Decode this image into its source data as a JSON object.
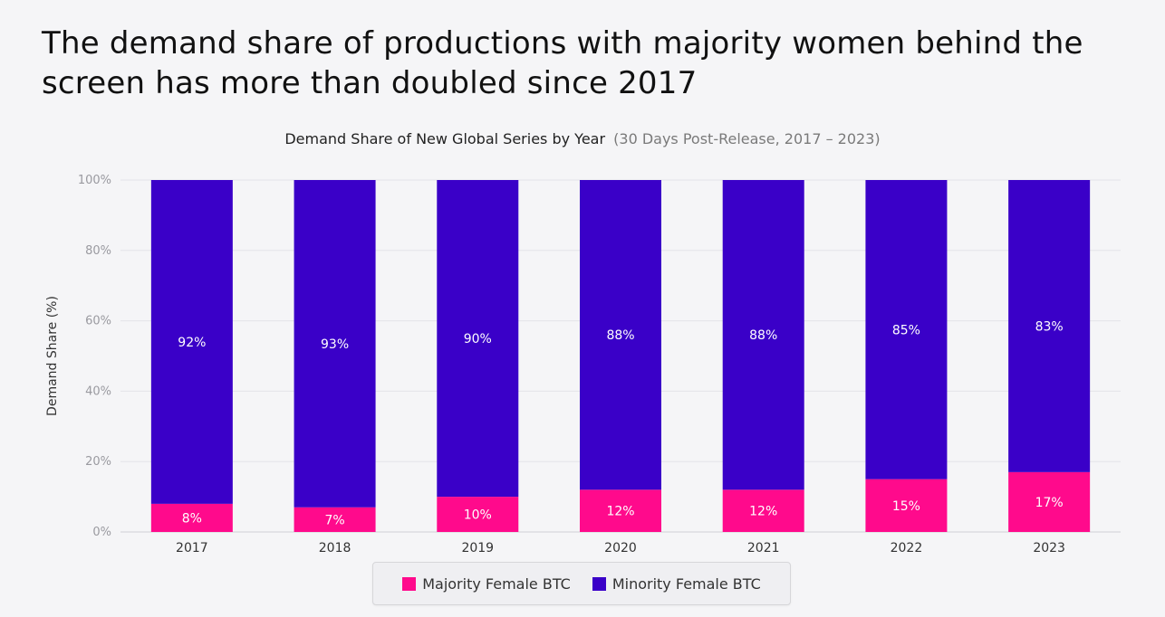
{
  "headline": "The demand share of productions with majority women behind the screen has more than doubled since 2017",
  "chart_data": {
    "type": "bar",
    "stacked": true,
    "title": "Demand Share of New Global Series by Year",
    "subtitle": "(30 Days Post-Release, 2017 – 2023)",
    "xlabel": "",
    "ylabel": "Demand Share (%)",
    "ylim": [
      0,
      100
    ],
    "yticks": [
      0,
      20,
      40,
      60,
      80,
      100
    ],
    "ytick_labels": [
      "0%",
      "20%",
      "40%",
      "60%",
      "80%",
      "100%"
    ],
    "grid": true,
    "categories": [
      "2017",
      "2018",
      "2019",
      "2020",
      "2021",
      "2022",
      "2023"
    ],
    "series": [
      {
        "name": "Majority Female BTC",
        "color": "#ff0a8c",
        "values": [
          8,
          7,
          10,
          12,
          12,
          15,
          17
        ],
        "labels": [
          "8%",
          "7%",
          "10%",
          "12%",
          "12%",
          "15%",
          "17%"
        ]
      },
      {
        "name": "Minority Female BTC",
        "color": "#3a00c8",
        "values": [
          92,
          93,
          90,
          88,
          88,
          85,
          83
        ],
        "labels": [
          "92%",
          "93%",
          "90%",
          "88%",
          "88%",
          "85%",
          "83%"
        ]
      }
    ],
    "legend": {
      "position": "bottom-center",
      "items": [
        "Majority Female BTC",
        "Minority Female BTC"
      ]
    }
  }
}
